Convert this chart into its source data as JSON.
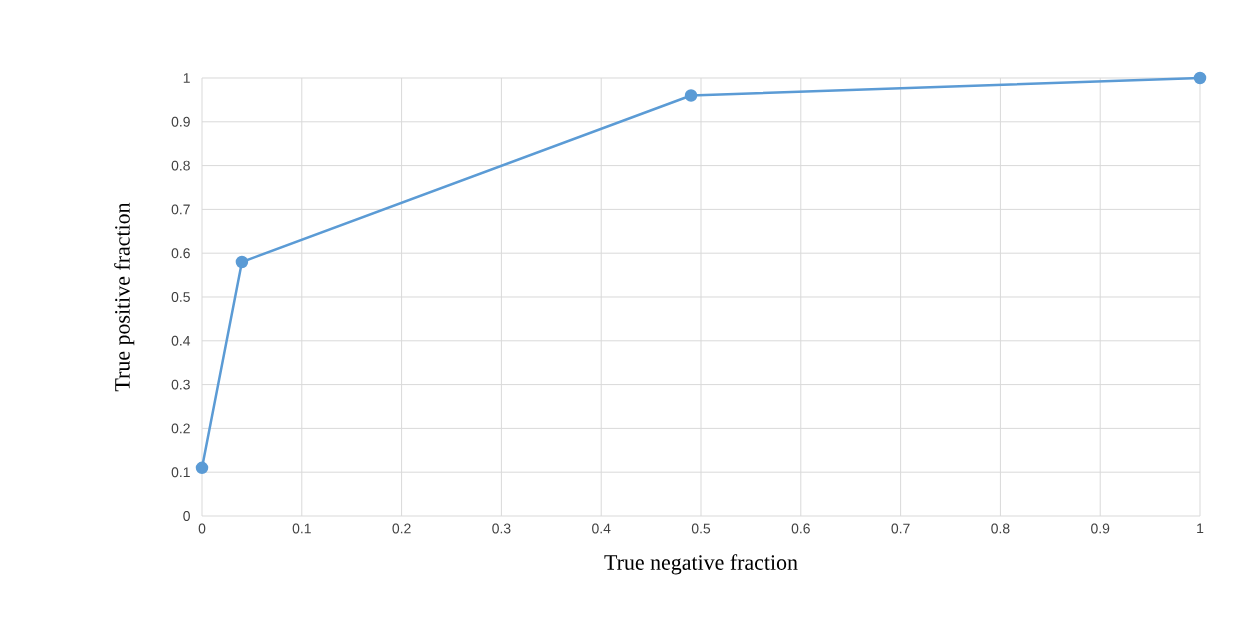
{
  "chart_data": {
    "type": "line",
    "xlabel": "True negative fraction",
    "ylabel": "True positive fraction",
    "x": [
      0,
      0.04,
      0.49,
      1
    ],
    "series": [
      {
        "color": "#5b9bd5",
        "values": [
          0.11,
          0.58,
          0.96,
          1
        ]
      }
    ],
    "xlim": [
      0,
      1
    ],
    "ylim": [
      0,
      1
    ],
    "xticks": [
      0,
      0.1,
      0.2,
      0.3,
      0.4,
      0.5,
      0.6,
      0.7,
      0.8,
      0.9,
      1
    ],
    "yticks": [
      0,
      0.1,
      0.2,
      0.3,
      0.4,
      0.5,
      0.6,
      0.7,
      0.8,
      0.9,
      1
    ],
    "grid": true,
    "marker": "circle",
    "line_style": "solid"
  }
}
